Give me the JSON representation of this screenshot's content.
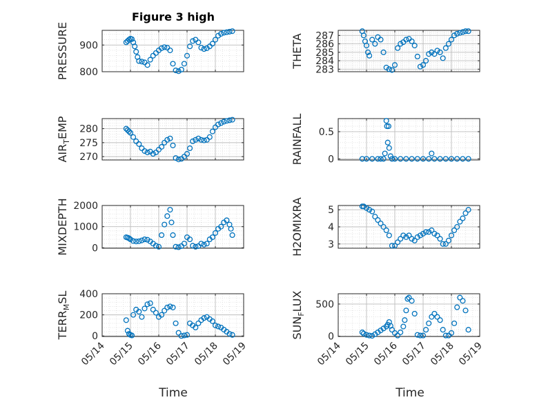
{
  "figure": {
    "title": "Figure 3 high",
    "xlabel": "Time",
    "marker_color": "#0072BD",
    "axis_color": "#262626",
    "grid_color": "#bdbdbd"
  },
  "chart_data": [
    {
      "type": "scatter",
      "name": "pressure",
      "ylabel": "PRESSURE",
      "ylabel_sub": "",
      "yticks": [
        "800",
        "900"
      ],
      "ylim": [
        800,
        955
      ],
      "ytick_values": [
        800,
        900
      ],
      "x": [
        "05/14.85",
        "05/14.9",
        "05/14.95",
        "05/15.0",
        "05/15.05",
        "05/15.1",
        "05/15.15",
        "05/15.2",
        "05/15.25",
        "05/15.3",
        "05/15.4",
        "05/15.5",
        "05/15.6",
        "05/15.7",
        "05/15.8",
        "05/15.9",
        "05/16.0",
        "05/16.1",
        "05/16.2",
        "05/16.3",
        "05/16.4",
        "05/16.5",
        "05/16.6",
        "05/16.7",
        "05/16.8",
        "05/16.9",
        "05/17.0",
        "05/17.1",
        "05/17.2",
        "05/17.3",
        "05/17.4",
        "05/17.5",
        "05/17.6",
        "05/17.7",
        "05/17.8",
        "05/17.9",
        "05/18.0",
        "05/18.1",
        "05/18.2",
        "05/18.3",
        "05/18.4",
        "05/18.5",
        "05/18.6"
      ],
      "y": [
        910,
        915,
        920,
        924,
        922,
        910,
        895,
        875,
        855,
        840,
        838,
        835,
        825,
        845,
        860,
        870,
        880,
        888,
        892,
        890,
        880,
        830,
        805,
        802,
        808,
        830,
        860,
        895,
        915,
        920,
        910,
        890,
        885,
        888,
        895,
        905,
        920,
        935,
        942,
        946,
        948,
        950,
        952
      ]
    },
    {
      "type": "scatter",
      "name": "theta",
      "ylabel": "THETA",
      "ylabel_sub": "",
      "yticks": [
        "283",
        "284",
        "285",
        "286",
        "287"
      ],
      "ylim": [
        282.7,
        287.6
      ],
      "ytick_values": [
        283,
        284,
        285,
        286,
        287
      ],
      "x": [
        "05/14.85",
        "05/14.9",
        "05/14.95",
        "05/15.0",
        "05/15.05",
        "05/15.1",
        "05/15.2",
        "05/15.3",
        "05/15.4",
        "05/15.5",
        "05/15.6",
        "05/15.7",
        "05/15.8",
        "05/15.9",
        "05/16.0",
        "05/16.1",
        "05/16.2",
        "05/16.3",
        "05/16.4",
        "05/16.5",
        "05/16.6",
        "05/16.7",
        "05/16.8",
        "05/16.9",
        "05/17.0",
        "05/17.1",
        "05/17.2",
        "05/17.3",
        "05/17.4",
        "05/17.5",
        "05/17.6",
        "05/17.7",
        "05/17.8",
        "05/17.9",
        "05/18.0",
        "05/18.1",
        "05/18.2",
        "05/18.3",
        "05/18.4",
        "05/18.5",
        "05/18.6"
      ],
      "y": [
        287.5,
        287.0,
        286.3,
        285.8,
        285.0,
        284.6,
        286.5,
        286.0,
        286.8,
        286.5,
        285.0,
        283.2,
        283.0,
        282.9,
        283.5,
        285.5,
        286.0,
        286.2,
        286.5,
        286.6,
        286.3,
        285.8,
        284.5,
        283.3,
        283.5,
        284.0,
        284.8,
        285.0,
        284.8,
        285.2,
        285.0,
        284.3,
        285.5,
        286.0,
        286.5,
        287.0,
        287.2,
        287.3,
        287.4,
        287.5,
        287.5
      ]
    },
    {
      "type": "scatter",
      "name": "air_temp",
      "ylabel": "AIR",
      "ylabel_sub": "T",
      "ylabel_suffix": "EMP",
      "yticks": [
        "270",
        "275",
        "280"
      ],
      "ylim": [
        268.8,
        283.6
      ],
      "ytick_values": [
        270,
        275,
        280
      ],
      "x": [
        "05/14.85",
        "05/14.9",
        "05/14.95",
        "05/15.0",
        "05/15.1",
        "05/15.2",
        "05/15.3",
        "05/15.4",
        "05/15.5",
        "05/15.6",
        "05/15.7",
        "05/15.8",
        "05/15.9",
        "05/16.0",
        "05/16.1",
        "05/16.2",
        "05/16.3",
        "05/16.4",
        "05/16.5",
        "05/16.6",
        "05/16.7",
        "05/16.8",
        "05/16.9",
        "05/17.0",
        "05/17.1",
        "05/17.2",
        "05/17.3",
        "05/17.4",
        "05/17.5",
        "05/17.6",
        "05/17.7",
        "05/17.8",
        "05/17.9",
        "05/18.0",
        "05/18.1",
        "05/18.2",
        "05/18.3",
        "05/18.4",
        "05/18.5",
        "05/18.6"
      ],
      "y": [
        280.0,
        279.5,
        279.0,
        278.5,
        277.0,
        275.5,
        274.5,
        273.0,
        272.0,
        271.5,
        271.8,
        271.0,
        271.5,
        272.5,
        273.5,
        275.0,
        276.0,
        276.5,
        274.0,
        269.5,
        269.0,
        269.2,
        270.0,
        271.0,
        273.0,
        275.5,
        276.0,
        276.5,
        276.0,
        275.8,
        276.0,
        277.0,
        279.0,
        280.5,
        281.5,
        282.0,
        282.5,
        282.8,
        283.0,
        283.2
      ]
    },
    {
      "type": "scatter",
      "name": "rainfall",
      "ylabel": "RAINFALL",
      "ylabel_sub": "",
      "yticks": [
        "0",
        "0.5"
      ],
      "ylim": [
        -0.02,
        0.74
      ],
      "ytick_values": [
        0,
        0.5
      ],
      "x": [
        "05/14.85",
        "05/15.0",
        "05/15.2",
        "05/15.4",
        "05/15.5",
        "05/15.6",
        "05/15.65",
        "05/15.7",
        "05/15.72",
        "05/15.75",
        "05/15.78",
        "05/15.8",
        "05/15.85",
        "05/15.9",
        "05/16.0",
        "05/16.2",
        "05/16.4",
        "05/16.6",
        "05/16.8",
        "05/17.0",
        "05/17.2",
        "05/17.3",
        "05/17.4",
        "05/17.6",
        "05/17.8",
        "05/18.0",
        "05/18.2",
        "05/18.4",
        "05/18.6"
      ],
      "y": [
        0,
        0,
        0,
        0,
        0,
        0,
        0.1,
        0.7,
        0.6,
        0.3,
        0.6,
        0.2,
        0.05,
        0,
        0,
        0,
        0,
        0,
        0,
        0,
        0,
        0.1,
        0,
        0,
        0,
        0,
        0,
        0,
        0
      ]
    },
    {
      "type": "scatter",
      "name": "mixdepth",
      "ylabel": "MIXDEPTH",
      "ylabel_sub": "",
      "yticks": [
        "0",
        "1000",
        "2000"
      ],
      "ylim": [
        -20,
        2000
      ],
      "ytick_values": [
        0,
        1000,
        2000
      ],
      "x": [
        "05/14.85",
        "05/14.9",
        "05/14.95",
        "05/15.0",
        "05/15.1",
        "05/15.2",
        "05/15.3",
        "05/15.4",
        "05/15.5",
        "05/15.6",
        "05/15.7",
        "05/15.8",
        "05/15.9",
        "05/16.0",
        "05/16.1",
        "05/16.2",
        "05/16.3",
        "05/16.4",
        "05/16.45",
        "05/16.5",
        "05/16.6",
        "05/16.7",
        "05/16.8",
        "05/16.9",
        "05/17.0",
        "05/17.1",
        "05/17.2",
        "05/17.3",
        "05/17.4",
        "05/17.5",
        "05/17.6",
        "05/17.7",
        "05/17.8",
        "05/17.9",
        "05/18.0",
        "05/18.1",
        "05/18.2",
        "05/18.3",
        "05/18.4",
        "05/18.5",
        "05/18.55",
        "05/18.6"
      ],
      "y": [
        500,
        480,
        450,
        400,
        320,
        300,
        310,
        350,
        400,
        380,
        300,
        200,
        100,
        50,
        600,
        1100,
        1500,
        1800,
        1200,
        600,
        50,
        30,
        80,
        200,
        500,
        400,
        100,
        50,
        80,
        200,
        150,
        200,
        400,
        500,
        700,
        900,
        1000,
        1200,
        1300,
        1100,
        900,
        600
      ]
    },
    {
      "type": "scatter",
      "name": "h2omixra",
      "ylabel": "H2OMIXRA",
      "ylabel_sub": "",
      "yticks": [
        "3",
        "4",
        "5"
      ],
      "ylim": [
        2.75,
        5.25
      ],
      "ytick_values": [
        3,
        4,
        5
      ],
      "x": [
        "05/14.85",
        "05/14.9",
        "05/15.0",
        "05/15.1",
        "05/15.2",
        "05/15.3",
        "05/15.4",
        "05/15.5",
        "05/15.6",
        "05/15.7",
        "05/15.8",
        "05/15.9",
        "05/16.0",
        "05/16.1",
        "05/16.2",
        "05/16.3",
        "05/16.4",
        "05/16.5",
        "05/16.6",
        "05/16.7",
        "05/16.8",
        "05/16.9",
        "05/17.0",
        "05/17.1",
        "05/17.2",
        "05/17.3",
        "05/17.4",
        "05/17.5",
        "05/17.6",
        "05/17.7",
        "05/17.8",
        "05/17.9",
        "05/18.0",
        "05/18.1",
        "05/18.2",
        "05/18.3",
        "05/18.4",
        "05/18.5",
        "05/18.6"
      ],
      "y": [
        5.2,
        5.2,
        5.1,
        5.0,
        4.9,
        4.6,
        4.4,
        4.2,
        4.0,
        3.8,
        3.5,
        2.9,
        2.9,
        3.1,
        3.3,
        3.5,
        3.4,
        3.5,
        3.3,
        3.2,
        3.4,
        3.5,
        3.6,
        3.7,
        3.7,
        3.8,
        3.6,
        3.5,
        3.3,
        3.0,
        3.0,
        3.2,
        3.5,
        3.8,
        4.0,
        4.3,
        4.5,
        4.8,
        5.0
      ]
    },
    {
      "type": "scatter",
      "name": "terr_msl",
      "ylabel": "TERR",
      "ylabel_sub": "M",
      "ylabel_suffix": "SL",
      "yticks": [
        "0",
        "200",
        "400"
      ],
      "ylim": [
        -5,
        400
      ],
      "ytick_values": [
        0,
        200,
        400
      ],
      "x": [
        "05/14.85",
        "05/14.9",
        "05/14.95",
        "05/15.0",
        "05/15.05",
        "05/15.1",
        "05/15.2",
        "05/15.3",
        "05/15.4",
        "05/15.5",
        "05/15.6",
        "05/15.7",
        "05/15.8",
        "05/15.9",
        "05/16.0",
        "05/16.1",
        "05/16.2",
        "05/16.3",
        "05/16.4",
        "05/16.5",
        "05/16.6",
        "05/16.7",
        "05/16.8",
        "05/16.9",
        "05/17.0",
        "05/17.1",
        "05/17.2",
        "05/17.3",
        "05/17.4",
        "05/17.5",
        "05/17.6",
        "05/17.7",
        "05/17.8",
        "05/17.9",
        "05/18.0",
        "05/18.1",
        "05/18.2",
        "05/18.3",
        "05/18.4",
        "05/18.5",
        "05/18.6"
      ],
      "y": [
        150,
        50,
        20,
        10,
        5,
        200,
        250,
        230,
        180,
        260,
        300,
        310,
        250,
        220,
        180,
        200,
        240,
        270,
        280,
        270,
        120,
        30,
        0,
        5,
        10,
        120,
        100,
        80,
        120,
        150,
        170,
        180,
        160,
        140,
        100,
        90,
        80,
        60,
        40,
        20,
        10
      ]
    },
    {
      "type": "scatter",
      "name": "sun_flux",
      "ylabel": "SUN",
      "ylabel_sub": "F",
      "ylabel_suffix": "LUX",
      "yticks": [
        "0",
        "500"
      ],
      "ylim": [
        -5,
        660
      ],
      "ytick_values": [
        0,
        500
      ],
      "x": [
        "05/14.85",
        "05/14.9",
        "05/15.0",
        "05/15.1",
        "05/15.2",
        "05/15.3",
        "05/15.4",
        "05/15.5",
        "05/15.6",
        "05/15.7",
        "05/15.75",
        "05/15.8",
        "05/15.85",
        "05/15.9",
        "05/16.0",
        "05/16.1",
        "05/16.2",
        "05/16.3",
        "05/16.35",
        "05/16.4",
        "05/16.45",
        "05/16.5",
        "05/16.6",
        "05/16.7",
        "05/16.8",
        "05/16.9",
        "05/17.0",
        "05/17.1",
        "05/17.2",
        "05/17.3",
        "05/17.4",
        "05/17.5",
        "05/17.6",
        "05/17.7",
        "05/17.8",
        "05/17.9",
        "05/18.0",
        "05/18.1",
        "05/18.2",
        "05/18.3",
        "05/18.4",
        "05/18.5",
        "05/18.6"
      ],
      "y": [
        60,
        40,
        20,
        10,
        5,
        30,
        60,
        90,
        120,
        150,
        180,
        220,
        160,
        100,
        50,
        10,
        60,
        150,
        250,
        400,
        580,
        600,
        550,
        350,
        20,
        10,
        10,
        100,
        200,
        300,
        350,
        300,
        250,
        100,
        10,
        10,
        50,
        200,
        450,
        600,
        550,
        400,
        100
      ]
    }
  ],
  "xaxis": {
    "ticks": [
      "05/14",
      "05/15",
      "05/16",
      "05/17",
      "05/18",
      "05/19"
    ],
    "tick_values": [
      14,
      15,
      16,
      17,
      18,
      19
    ],
    "xlim": [
      14,
      19
    ]
  }
}
